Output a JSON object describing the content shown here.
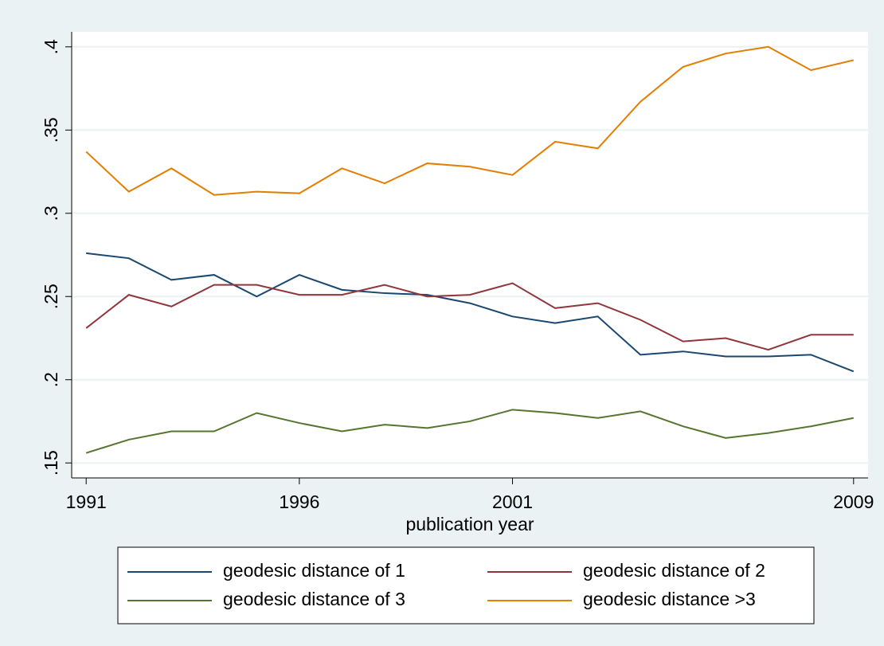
{
  "chart_data": {
    "type": "line",
    "x_label": "publication year",
    "x": [
      1991,
      1992,
      1993,
      1994,
      1995,
      1996,
      1997,
      1998,
      1999,
      2000,
      2001,
      2002,
      2003,
      2004,
      2005,
      2006,
      2007,
      2008,
      2009
    ],
    "series": [
      {
        "name": "geodesic distance of 1",
        "color": "#1a476f",
        "values": [
          0.276,
          0.273,
          0.26,
          0.263,
          0.25,
          0.263,
          0.254,
          0.252,
          0.251,
          0.246,
          0.238,
          0.234,
          0.238,
          0.215,
          0.217,
          0.214,
          0.214,
          0.215,
          0.205
        ]
      },
      {
        "name": "geodesic distance of 2",
        "color": "#90353b",
        "values": [
          0.231,
          0.251,
          0.244,
          0.257,
          0.257,
          0.251,
          0.251,
          0.257,
          0.25,
          0.251,
          0.258,
          0.243,
          0.246,
          0.236,
          0.223,
          0.225,
          0.218,
          0.227,
          0.227
        ]
      },
      {
        "name": "geodesic distance of 3",
        "color": "#55752f",
        "values": [
          0.156,
          0.164,
          0.169,
          0.169,
          0.18,
          0.174,
          0.169,
          0.173,
          0.171,
          0.175,
          0.182,
          0.18,
          0.177,
          0.181,
          0.172,
          0.165,
          0.168,
          0.172,
          0.177
        ]
      },
      {
        "name": "geodesic distance >3",
        "color": "#e37e00",
        "values": [
          0.337,
          0.313,
          0.327,
          0.311,
          0.313,
          0.312,
          0.327,
          0.318,
          0.33,
          0.328,
          0.323,
          0.343,
          0.339,
          0.367,
          0.388,
          0.396,
          0.4,
          0.386,
          0.392
        ]
      }
    ],
    "xlim": [
      1990.66,
      2009.34
    ],
    "xticks": [
      1991,
      1996,
      2001,
      2009
    ],
    "ylim": [
      0.141,
      0.409
    ],
    "yticks": [
      {
        "value": 0.15,
        "label": ".15"
      },
      {
        "value": 0.2,
        "label": ".2"
      },
      {
        "value": 0.25,
        "label": ".25"
      },
      {
        "value": 0.3,
        "label": ".3"
      },
      {
        "value": 0.35,
        "label": ".35"
      },
      {
        "value": 0.4,
        "label": ".4"
      }
    ],
    "grid": true,
    "legend": "bottom"
  }
}
